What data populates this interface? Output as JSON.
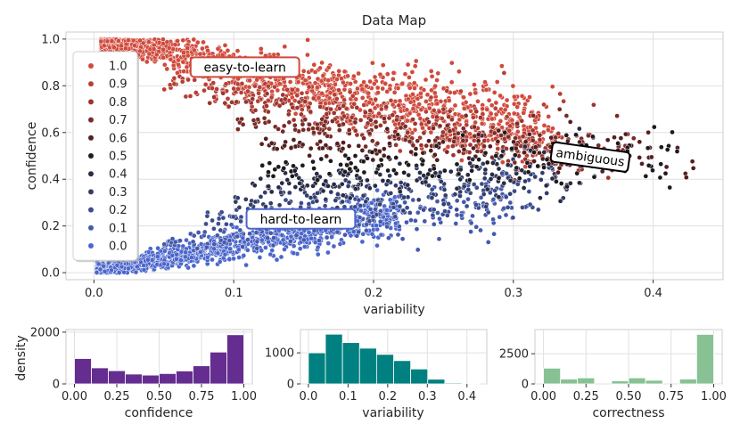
{
  "chart_data": [
    {
      "id": "datamap",
      "type": "scatter",
      "title": "Data Map",
      "xlabel": "variability",
      "ylabel": "confidence",
      "xlim": [
        -0.02,
        0.45
      ],
      "ylim": [
        -0.03,
        1.03
      ],
      "xticks": [
        "0.0",
        "0.1",
        "0.2",
        "0.3",
        "0.4"
      ],
      "xtick_values": [
        0.0,
        0.1,
        0.2,
        0.3,
        0.4
      ],
      "yticks": [
        "0.0",
        "0.2",
        "0.4",
        "0.6",
        "0.8",
        "1.0"
      ],
      "ytick_values": [
        0.0,
        0.2,
        0.4,
        0.6,
        0.8,
        1.0
      ],
      "grid": true,
      "legend_placement": "upper-left",
      "hue_variable": "correctness",
      "legend": [
        {
          "label": "1.0",
          "color": "#d04a3c"
        },
        {
          "label": "0.9",
          "color": "#b73f34"
        },
        {
          "label": "0.8",
          "color": "#9b352e"
        },
        {
          "label": "0.7",
          "color": "#7a2b28"
        },
        {
          "label": "0.6",
          "color": "#531f20"
        },
        {
          "label": "0.5",
          "color": "#1f1a1c"
        },
        {
          "label": "0.4",
          "color": "#272b45"
        },
        {
          "label": "0.3",
          "color": "#323d6b"
        },
        {
          "label": "0.2",
          "color": "#3b4c8e"
        },
        {
          "label": "0.1",
          "color": "#4459ad"
        },
        {
          "label": "0.0",
          "color": "#4b66cc"
        }
      ],
      "annotations": [
        {
          "text": "easy-to-learn",
          "x": 0.108,
          "y": 0.88,
          "edge": "#d04a3c",
          "rotate": 0
        },
        {
          "text": "hard-to-learn",
          "x": 0.148,
          "y": 0.23,
          "edge": "#4b66cc",
          "rotate": 0
        },
        {
          "text": "ambiguous",
          "x": 0.355,
          "y": 0.495,
          "edge": "#000000",
          "rotate": 8
        }
      ],
      "point_clusters": [
        {
          "correctness": 1.0,
          "x_min": 0.005,
          "x_max": 0.33,
          "y_at_xmin": 0.995,
          "y_at_xmax": 0.6,
          "spread": 0.07,
          "count": 1400
        },
        {
          "correctness": 0.9,
          "x_min": 0.05,
          "x_max": 0.34,
          "y_at_xmin": 0.82,
          "y_at_xmax": 0.55,
          "spread": 0.06,
          "count": 240
        },
        {
          "correctness": 0.8,
          "x_min": 0.08,
          "x_max": 0.37,
          "y_at_xmin": 0.75,
          "y_at_xmax": 0.5,
          "spread": 0.05,
          "count": 200
        },
        {
          "correctness": 0.7,
          "x_min": 0.1,
          "x_max": 0.39,
          "y_at_xmin": 0.65,
          "y_at_xmax": 0.52,
          "spread": 0.05,
          "count": 160
        },
        {
          "correctness": 0.6,
          "x_min": 0.12,
          "x_max": 0.43,
          "y_at_xmin": 0.55,
          "y_at_xmax": 0.5,
          "spread": 0.05,
          "count": 140
        },
        {
          "correctness": 0.5,
          "x_min": 0.12,
          "x_max": 0.42,
          "y_at_xmin": 0.45,
          "y_at_xmax": 0.48,
          "spread": 0.05,
          "count": 130
        },
        {
          "correctness": 0.4,
          "x_min": 0.11,
          "x_max": 0.36,
          "y_at_xmin": 0.38,
          "y_at_xmax": 0.45,
          "spread": 0.05,
          "count": 130
        },
        {
          "correctness": 0.3,
          "x_min": 0.1,
          "x_max": 0.34,
          "y_at_xmin": 0.3,
          "y_at_xmax": 0.42,
          "spread": 0.05,
          "count": 140
        },
        {
          "correctness": 0.2,
          "x_min": 0.08,
          "x_max": 0.32,
          "y_at_xmin": 0.22,
          "y_at_xmax": 0.36,
          "spread": 0.05,
          "count": 160
        },
        {
          "correctness": 0.1,
          "x_min": 0.05,
          "x_max": 0.3,
          "y_at_xmin": 0.12,
          "y_at_xmax": 0.3,
          "spread": 0.05,
          "count": 200
        },
        {
          "correctness": 0.0,
          "x_min": 0.002,
          "x_max": 0.22,
          "y_at_xmin": 0.005,
          "y_at_xmax": 0.25,
          "spread": 0.04,
          "count": 1200
        }
      ]
    },
    {
      "id": "hist-confidence",
      "type": "bar",
      "xlabel": "confidence",
      "ylabel": "density",
      "color": "#652d90",
      "xlim": [
        -0.05,
        1.05
      ],
      "ylim": [
        0,
        2100
      ],
      "xticks": [
        "0.00",
        "0.25",
        "0.50",
        "0.75",
        "1.00"
      ],
      "xtick_values": [
        0.0,
        0.25,
        0.5,
        0.75,
        1.0
      ],
      "yticks": [
        "0",
        "2000"
      ],
      "ytick_values": [
        0,
        2000
      ],
      "bin_edges": [
        0.0,
        0.1,
        0.2,
        0.3,
        0.4,
        0.5,
        0.6,
        0.7,
        0.8,
        0.9,
        1.0
      ],
      "values": [
        980,
        620,
        510,
        380,
        340,
        400,
        500,
        700,
        1230,
        1900
      ]
    },
    {
      "id": "hist-variability",
      "type": "bar",
      "xlabel": "variability",
      "ylabel": "",
      "color": "#008080",
      "xlim": [
        -0.02,
        0.45
      ],
      "ylim": [
        0,
        1750
      ],
      "xticks": [
        "0.0",
        "0.1",
        "0.2",
        "0.3",
        "0.4"
      ],
      "xtick_values": [
        0.0,
        0.1,
        0.2,
        0.3,
        0.4
      ],
      "yticks": [
        "0",
        "1000"
      ],
      "ytick_values": [
        0,
        1000
      ],
      "bin_edges": [
        0.0,
        0.043,
        0.086,
        0.129,
        0.172,
        0.215,
        0.258,
        0.301,
        0.344,
        0.387,
        0.43
      ],
      "values": [
        1000,
        1600,
        1330,
        1150,
        950,
        750,
        480,
        150,
        30,
        5
      ]
    },
    {
      "id": "hist-correctness",
      "type": "bar",
      "xlabel": "correctness",
      "ylabel": "",
      "color": "#88c294",
      "xlim": [
        -0.05,
        1.05
      ],
      "ylim": [
        0,
        4500
      ],
      "xticks": [
        "0.00",
        "0.25",
        "0.50",
        "0.75",
        "1.00"
      ],
      "xtick_values": [
        0.0,
        0.25,
        0.5,
        0.75,
        1.0
      ],
      "yticks": [
        "0",
        "2500"
      ],
      "ytick_values": [
        0,
        2500
      ],
      "bin_edges": [
        0.0,
        0.1,
        0.2,
        0.3,
        0.4,
        0.5,
        0.6,
        0.7,
        0.8,
        0.9,
        1.0
      ],
      "values": [
        1300,
        400,
        500,
        0,
        250,
        500,
        300,
        0,
        400,
        4100
      ]
    }
  ]
}
